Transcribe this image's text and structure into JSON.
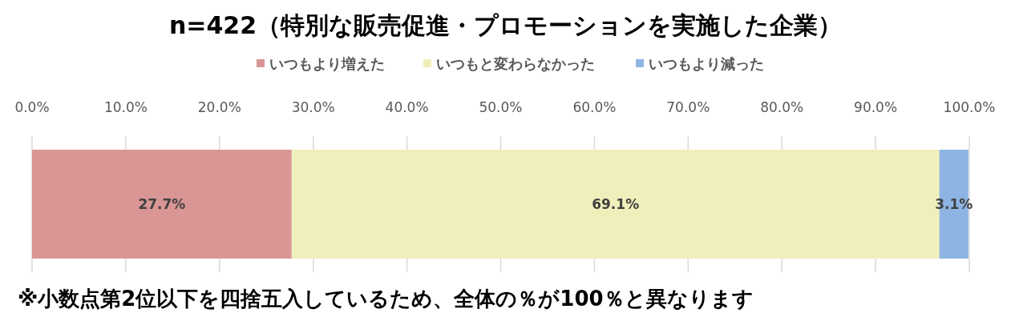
{
  "chart_data": {
    "type": "bar",
    "orientation": "horizontal",
    "stacked": true,
    "title": "n=422（特別な販売促進・プロモーションを実施した企業）",
    "categories": [
      null
    ],
    "series": [
      {
        "name": "いつもより増えた",
        "color": "#da9694",
        "values": [
          27.7
        ],
        "value_labels": [
          "27.7%"
        ]
      },
      {
        "name": "いつもと変わらなかった",
        "color": "#f0efbb",
        "values": [
          69.1
        ],
        "value_labels": [
          "69.1%"
        ]
      },
      {
        "name": "いつもより減った",
        "color": "#8db4e2",
        "values": [
          3.1
        ],
        "value_labels": [
          "3.1%"
        ]
      }
    ],
    "xlim": [
      0,
      100
    ],
    "xticks": [
      {
        "value": 0,
        "label": "0.0%"
      },
      {
        "value": 10,
        "label": "10.0%"
      },
      {
        "value": 20,
        "label": "20.0%"
      },
      {
        "value": 30,
        "label": "30.0%"
      },
      {
        "value": 40,
        "label": "40.0%"
      },
      {
        "value": 50,
        "label": "50.0%"
      },
      {
        "value": 60,
        "label": "60.0%"
      },
      {
        "value": 70,
        "label": "70.0%"
      },
      {
        "value": 80,
        "label": "80.0%"
      },
      {
        "value": 90,
        "label": "90.0%"
      },
      {
        "value": 100,
        "label": "100.0%"
      }
    ],
    "grid": "x",
    "legend": "top",
    "annotations": [
      "※小数点第2位以下を四捨五入しているため、全体の％が100％と異なります"
    ]
  }
}
